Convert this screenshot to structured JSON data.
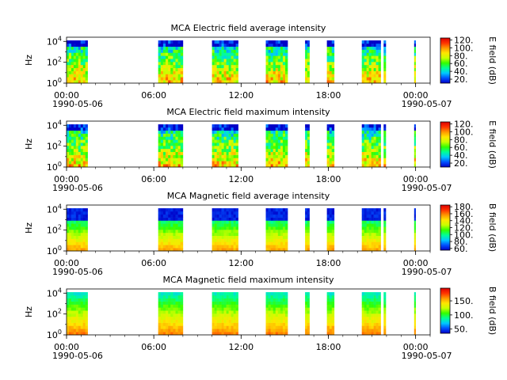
{
  "chart_data": [
    {
      "type": "heatmap",
      "title": "MCA  Electric field average intensity",
      "ylabel": "Hz",
      "colorbar_label": "E field (dB)",
      "colorbar_ticks": [
        "20.",
        "40.",
        "60.",
        "80.",
        "100.",
        "120."
      ],
      "colorbar_range": [
        10,
        125
      ],
      "y_ticks": [
        {
          "base": "10",
          "exp": "0"
        },
        {
          "base": "10",
          "exp": "2"
        },
        {
          "base": "10",
          "exp": "4"
        }
      ],
      "x_ticks": [
        "00:00",
        "06:00",
        "12:00",
        "18:00",
        "00:00"
      ],
      "x_dates": [
        "1990-05-06",
        "1990-05-07"
      ],
      "ylim_log10": [
        0,
        4.4
      ],
      "data_intervals_hours": [
        [
          0,
          1.45
        ],
        [
          6.3,
          8.0
        ],
        [
          10.0,
          11.8
        ],
        [
          13.7,
          15.2
        ],
        [
          16.4,
          16.7
        ],
        [
          17.9,
          18.4
        ],
        [
          20.3,
          21.6
        ],
        [
          21.8,
          21.95
        ],
        [
          23.9,
          24.0
        ]
      ],
      "colormap": [
        "#0000c8",
        "#0050ff",
        "#00c8ff",
        "#00ff96",
        "#32ff00",
        "#c8ff00",
        "#ffe600",
        "#ff9600",
        "#ff3200",
        "#dc0000"
      ]
    },
    {
      "type": "heatmap",
      "title": "MCA  Electric field maximum intensity",
      "ylabel": "Hz",
      "colorbar_label": "E field (dB)",
      "colorbar_ticks": [
        "20.",
        "40.",
        "60.",
        "80.",
        "100.",
        "120."
      ],
      "colorbar_range": [
        10,
        125
      ],
      "y_ticks": [
        {
          "base": "10",
          "exp": "0"
        },
        {
          "base": "10",
          "exp": "2"
        },
        {
          "base": "10",
          "exp": "4"
        }
      ],
      "x_ticks": [
        "00:00",
        "06:00",
        "12:00",
        "18:00",
        "00:00"
      ],
      "x_dates": [
        "1990-05-06",
        "1990-05-07"
      ],
      "ylim_log10": [
        0,
        4.4
      ],
      "data_intervals_hours": [
        [
          0,
          1.45
        ],
        [
          6.3,
          8.0
        ],
        [
          10.0,
          11.8
        ],
        [
          13.7,
          15.2
        ],
        [
          16.4,
          16.7
        ],
        [
          17.9,
          18.4
        ],
        [
          20.3,
          21.6
        ],
        [
          21.8,
          21.95
        ],
        [
          23.9,
          24.0
        ]
      ]
    },
    {
      "type": "heatmap",
      "title": "MCA  Magnetic field average intensity",
      "ylabel": "Hz",
      "colorbar_label": "B field (dB)",
      "colorbar_ticks": [
        "60.",
        "80.",
        "100.",
        "120.",
        "140.",
        "160.",
        "180."
      ],
      "colorbar_range": [
        55,
        185
      ],
      "y_ticks": [
        {
          "base": "10",
          "exp": "0"
        },
        {
          "base": "10",
          "exp": "2"
        },
        {
          "base": "10",
          "exp": "4"
        }
      ],
      "x_ticks": [
        "00:00",
        "06:00",
        "12:00",
        "18:00",
        "00:00"
      ],
      "x_dates": [
        "1990-05-06",
        "1990-05-07"
      ],
      "ylim_log10": [
        0,
        4.4
      ],
      "data_intervals_hours": [
        [
          0,
          1.45
        ],
        [
          6.3,
          8.0
        ],
        [
          10.0,
          11.8
        ],
        [
          13.7,
          15.2
        ],
        [
          16.4,
          16.7
        ],
        [
          17.9,
          18.4
        ],
        [
          20.3,
          21.6
        ],
        [
          21.8,
          21.95
        ],
        [
          23.9,
          24.0
        ]
      ]
    },
    {
      "type": "heatmap",
      "title": "MCA  Magnetic field maximum intensity",
      "ylabel": "Hz",
      "colorbar_label": "B field (dB)",
      "colorbar_ticks": [
        "50.",
        "100.",
        "150."
      ],
      "colorbar_range": [
        35,
        195
      ],
      "y_ticks": [
        {
          "base": "10",
          "exp": "0"
        },
        {
          "base": "10",
          "exp": "2"
        },
        {
          "base": "10",
          "exp": "4"
        }
      ],
      "x_ticks": [
        "00:00",
        "06:00",
        "12:00",
        "18:00",
        "00:00"
      ],
      "x_dates": [
        "1990-05-06",
        "1990-05-07"
      ],
      "ylim_log10": [
        0,
        4.4
      ],
      "data_intervals_hours": [
        [
          0,
          1.45
        ],
        [
          6.3,
          8.0
        ],
        [
          10.0,
          11.8
        ],
        [
          13.7,
          15.2
        ],
        [
          16.4,
          16.7
        ],
        [
          17.9,
          18.4
        ],
        [
          20.3,
          21.6
        ],
        [
          21.8,
          21.95
        ],
        [
          23.9,
          24.0
        ]
      ]
    }
  ]
}
